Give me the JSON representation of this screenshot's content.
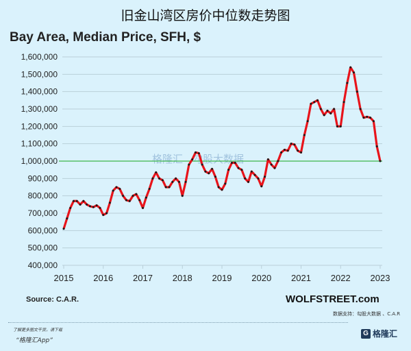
{
  "title": "旧金山湾区房价中位数走势图",
  "footer": {
    "source": "Source: C.A.R.",
    "site": "WOLFSTREET.com",
    "support": "数据支持：勾股大数据 、C.A.R",
    "learn_more": "了解更多图文干货，请下载",
    "app": "“格隆汇App”",
    "logo_text": "格隆汇"
  },
  "watermark": {
    "left": "格隆汇",
    "right": "勾股大数据"
  },
  "colors": {
    "line": "#e8141b",
    "marker": "#1a1a1a",
    "reference": "#3cb54a",
    "grid": "#b9cfd9",
    "background": "#daf2fc"
  },
  "chart_data": {
    "type": "line",
    "title": "Bay Area, Median Price, SFH, $",
    "xlabel": "",
    "ylabel": "",
    "x_start": "2015-01",
    "frequency": "monthly",
    "xlim": [
      2015,
      2023
    ],
    "ylim": [
      400000,
      1600000
    ],
    "x_ticks": [
      "2015",
      "2016",
      "2017",
      "2018",
      "2019",
      "2020",
      "2021",
      "2022",
      "2023"
    ],
    "y_ticks": [
      "400,000",
      "500,000",
      "600,000",
      "700,000",
      "800,000",
      "900,000",
      "1,000,000",
      "1,100,000",
      "1,200,000",
      "1,300,000",
      "1,400,000",
      "1,500,000",
      "1,600,000"
    ],
    "y_tick_values": [
      400000,
      500000,
      600000,
      700000,
      800000,
      900000,
      1000000,
      1100000,
      1200000,
      1300000,
      1400000,
      1500000,
      1600000
    ],
    "grid": true,
    "reference_line": 1000000,
    "series": [
      {
        "name": "Median Price",
        "values": [
          610000,
          670000,
          730000,
          770000,
          770000,
          750000,
          770000,
          750000,
          740000,
          735000,
          745000,
          730000,
          690000,
          700000,
          760000,
          830000,
          850000,
          840000,
          800000,
          775000,
          770000,
          800000,
          810000,
          775000,
          730000,
          790000,
          840000,
          900000,
          935000,
          900000,
          890000,
          850000,
          850000,
          880000,
          900000,
          880000,
          800000,
          880000,
          980000,
          1010000,
          1050000,
          1045000,
          980000,
          940000,
          930000,
          955000,
          910000,
          850000,
          835000,
          870000,
          950000,
          990000,
          990000,
          960000,
          950000,
          900000,
          880000,
          940000,
          920000,
          900000,
          855000,
          910000,
          1010000,
          980000,
          960000,
          1000000,
          1050000,
          1065000,
          1060000,
          1100000,
          1095000,
          1060000,
          1050000,
          1150000,
          1230000,
          1330000,
          1340000,
          1350000,
          1300000,
          1265000,
          1290000,
          1275000,
          1300000,
          1200000,
          1200000,
          1340000,
          1450000,
          1540000,
          1510000,
          1400000,
          1300000,
          1250000,
          1255000,
          1250000,
          1230000,
          1085000,
          1000000
        ]
      }
    ]
  }
}
